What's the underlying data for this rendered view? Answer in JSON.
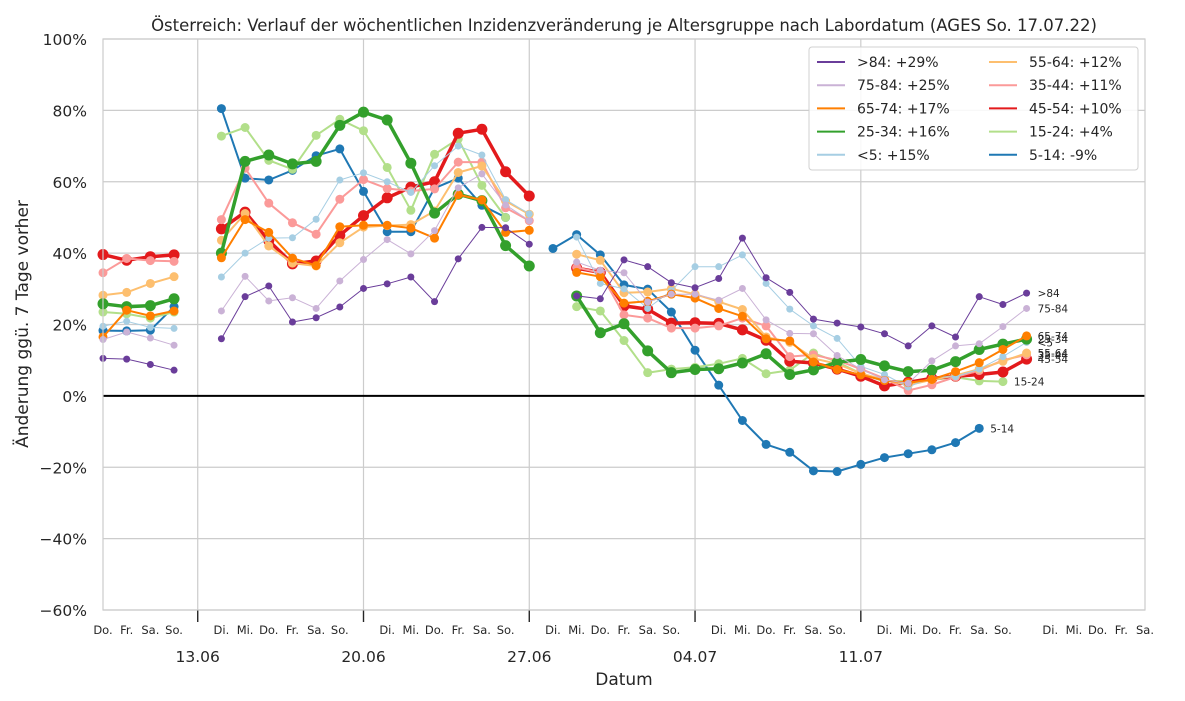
{
  "chart_data": {
    "type": "line",
    "title": "Österreich: Verlauf der wöchentlichen Inzidenzveränderung je Altersgruppe nach Labordatum (AGES So. 17.07.22)",
    "xlabel": "Datum",
    "ylabel": "Änderung ggü. 7 Tage vorher",
    "ylim": [
      -60,
      100
    ],
    "yticks": [
      "100%",
      "80%",
      "60%",
      "40%",
      "20%",
      "0%",
      "−20%",
      "−40%",
      "−60%"
    ],
    "ytick_values": [
      100,
      80,
      60,
      40,
      20,
      0,
      -20,
      -40,
      -60
    ],
    "day_labels": [
      "Do.",
      "Fr.",
      "Sa.",
      "So.",
      "",
      "Di.",
      "Mi.",
      "Do.",
      "Fr.",
      "Sa.",
      "So.",
      "",
      "Di.",
      "Mi.",
      "Do.",
      "Fr.",
      "Sa.",
      "So.",
      "",
      "Di.",
      "Mi.",
      "Do.",
      "Fr.",
      "Sa.",
      "So.",
      "",
      "Di.",
      "Mi.",
      "Do.",
      "Fr.",
      "Sa.",
      "So.",
      "",
      "Di.",
      "Mi.",
      "Do.",
      "Fr.",
      "Sa.",
      "So.",
      "",
      "Di.",
      "Mi.",
      "Do.",
      "Fr.",
      "Sa."
    ],
    "week_labels": [
      {
        "index": 4,
        "label": "13.06"
      },
      {
        "index": 11,
        "label": "20.06"
      },
      {
        "index": 18,
        "label": "27.06"
      },
      {
        "index": 25,
        "label": "04.07"
      },
      {
        "index": 32,
        "label": "11.07"
      }
    ],
    "grid": true,
    "legend_position": "top-right",
    "legend_columns": 2,
    "zero_line": true,
    "series": [
      {
        "name": ">84: +29%",
        "end_label": ">84",
        "color": "#6a3d9a",
        "width": 1,
        "marker": 3.5,
        "values": [
          10.5,
          10.3,
          8.8,
          7.2,
          null,
          16,
          27.8,
          30.8,
          20.7,
          21.9,
          24.9,
          30.1,
          31.4,
          33.3,
          26.4,
          38.4,
          47.2,
          47.1,
          42.5,
          null,
          28,
          27.2,
          38.1,
          36.2,
          31.7,
          30.3,
          32.9,
          44.2,
          33.1,
          29,
          21.5,
          20.4,
          19.3,
          17.4,
          14,
          19.6,
          16.5,
          27.8,
          25.6,
          28.8
        ]
      },
      {
        "name": "75-84: +25%",
        "end_label": "75-84",
        "color": "#cab2d6",
        "width": 1,
        "marker": 3.5,
        "values": [
          15.8,
          17.9,
          16.2,
          14.2,
          null,
          23.8,
          33.5,
          26.6,
          27.5,
          24.5,
          32.2,
          38.2,
          43.8,
          39.8,
          46.3,
          58.3,
          62.2,
          53.5,
          49.1,
          null,
          37.5,
          35.2,
          34.5,
          26.3,
          28.5,
          28.5,
          26.8,
          30.1,
          21.3,
          17.5,
          17.4,
          11.3,
          7.5,
          4.5,
          3.5,
          9.8,
          14,
          14.6,
          19.4,
          24.5
        ]
      },
      {
        "name": "65-74: +17%",
        "end_label": "65-74",
        "color": "#ff7f00",
        "width": 2,
        "marker": 4.5,
        "values": [
          16.5,
          24,
          22.4,
          23.8,
          null,
          38.7,
          49.4,
          45.8,
          38.6,
          36.5,
          47.4,
          47.8,
          47.8,
          47,
          44.2,
          56.4,
          54.9,
          45.8,
          46.4,
          null,
          34.6,
          33.4,
          26,
          26.5,
          28.5,
          27.4,
          24.5,
          22.3,
          16,
          15.4,
          9.5,
          7.4,
          5.9,
          4.3,
          3.7,
          4.6,
          6.8,
          9.3,
          13,
          16.8
        ]
      },
      {
        "name": "25-34: +16%",
        "end_label": "25-34",
        "color": "#33a02c",
        "width": 3.5,
        "marker": 5.5,
        "values": [
          25.8,
          25,
          25.3,
          27.2,
          null,
          40,
          65.7,
          67.5,
          65,
          65.7,
          75.8,
          79.5,
          77.3,
          65.2,
          51.2,
          56.5,
          54.7,
          42.1,
          36.4,
          null,
          28,
          17.7,
          20.2,
          12.6,
          6.5,
          7.4,
          7.6,
          9.2,
          11.8,
          6,
          7.3,
          9.4,
          10.2,
          8.4,
          6.8,
          7.2,
          9.6,
          13,
          14.5,
          15.9
        ]
      },
      {
        "name": "<5: +15%",
        "end_label": "<5",
        "color": "#a6cee3",
        "width": 1,
        "marker": 3.5,
        "values": [
          19.5,
          20.9,
          19.2,
          18.9,
          null,
          33.3,
          40,
          44.2,
          44.3,
          49.5,
          60.5,
          62.5,
          60,
          57,
          64.5,
          70,
          67.5,
          55,
          51,
          null,
          44.5,
          31.5,
          30,
          24.5,
          29.5,
          36.2,
          36.2,
          39.5,
          31.5,
          24.3,
          19.6,
          16.1,
          8.3,
          6,
          2.5,
          5.2,
          5.4,
          7.5,
          11,
          15
        ]
      },
      {
        "name": "55-64: +12%",
        "end_label": "55-64",
        "color": "#fdbf6f",
        "width": 2,
        "marker": 4.5,
        "values": [
          28.2,
          29,
          31.5,
          33.4,
          null,
          43.6,
          51.1,
          42,
          37.2,
          36.4,
          42.9,
          47.3,
          47.7,
          48,
          51.8,
          62.6,
          64.4,
          54.6,
          50.9,
          null,
          39.7,
          38,
          28.9,
          29.1,
          30,
          28.5,
          26.4,
          24.2,
          16.5,
          15,
          10.5,
          9,
          6.3,
          4.5,
          3,
          4.5,
          5.7,
          7.5,
          9.7,
          12
        ]
      },
      {
        "name": "35-44: +11%",
        "end_label": "35-44",
        "color": "#fb9a99",
        "width": 2,
        "marker": 4.5,
        "values": [
          34.5,
          38.5,
          37.9,
          37.7,
          null,
          49.4,
          63.8,
          54,
          48.5,
          45.3,
          55.1,
          60.6,
          58.1,
          57.4,
          58,
          65.5,
          65.5,
          52.7,
          49.1,
          null,
          36,
          34.5,
          22.7,
          21.8,
          19,
          19,
          19.6,
          21.8,
          19.6,
          11,
          11.5,
          10,
          7.5,
          4.9,
          1.5,
          3.1,
          5.3,
          7.1,
          10,
          11.5
        ]
      },
      {
        "name": "45-54: +10%",
        "end_label": "45-54",
        "color": "#e31a1c",
        "width": 3.5,
        "marker": 5.5,
        "values": [
          39.6,
          38,
          39,
          39.5,
          null,
          46.8,
          51.5,
          43.5,
          37,
          37.8,
          45,
          50.5,
          55.5,
          58.5,
          60,
          73.6,
          74.7,
          62.8,
          56,
          null,
          35.8,
          34.6,
          25.2,
          24.3,
          20.4,
          20.5,
          20.3,
          18.5,
          15.6,
          9.7,
          9.2,
          7.5,
          5.5,
          2.8,
          3.8,
          4.9,
          5.5,
          6,
          6.7,
          10.3
        ]
      },
      {
        "name": "15-24: +4%",
        "end_label": "15-24",
        "color": "#b2df8a",
        "width": 2,
        "marker": 4.5,
        "values": [
          23.5,
          23,
          21.8,
          23.5,
          null,
          72.8,
          75.2,
          66,
          63.5,
          73,
          77.5,
          74.3,
          64,
          52,
          67.7,
          72,
          59,
          50,
          null,
          null,
          25,
          23.8,
          15.5,
          6.5,
          7.5,
          8,
          9,
          10.5,
          6.2,
          7.2,
          12,
          9.5,
          6.3,
          4,
          4.2,
          4.5,
          5.2,
          4.2,
          4
        ]
      },
      {
        "name": "5-14: -9%",
        "end_label": "5-14",
        "color": "#1f78b4",
        "width": 2,
        "marker": 4.5,
        "values": [
          18.3,
          18.2,
          18.4,
          25,
          null,
          80.5,
          61,
          60.5,
          63.2,
          67.3,
          69.2,
          57.3,
          46,
          46,
          58.2,
          61,
          53.4,
          50,
          null,
          41.3,
          45.2,
          39.5,
          31.1,
          29.9,
          23.5,
          12.8,
          3,
          -6.9,
          -13.6,
          -15.8,
          -21,
          -21.2,
          -19.2,
          -17.3,
          -16.2,
          -15.1,
          -13.1,
          -9.1
        ]
      }
    ]
  }
}
